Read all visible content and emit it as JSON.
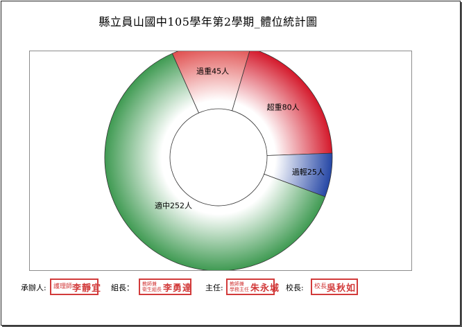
{
  "title": "縣立員山國中105學年第2學期_體位統計圖",
  "chart_data": {
    "type": "pie",
    "variant": "donut",
    "title": "縣立員山國中105學年第2學期_體位統計圖",
    "slices": [
      {
        "name": "過重",
        "value": 45,
        "label": "過重45人",
        "color": "#e04f4f"
      },
      {
        "name": "超重",
        "value": 80,
        "label": "超重80人",
        "color": "#d4192b"
      },
      {
        "name": "過輕",
        "value": 25,
        "label": "過輕25人",
        "color": "#2546a5"
      },
      {
        "name": "適中",
        "value": 252,
        "label": "適中252人",
        "color": "#3f9a52"
      }
    ]
  },
  "signatures": [
    {
      "role": "承辦人:",
      "seal_title": "護理師",
      "seal_name": "李靜宜"
    },
    {
      "role": "組長：",
      "seal_title_lines": [
        "教師兼",
        "衛生組長"
      ],
      "seal_name": "李勇達"
    },
    {
      "role": "主任:",
      "seal_title_lines": [
        "教師兼",
        "學務主任"
      ],
      "seal_name": "朱永城"
    },
    {
      "role": "校長:",
      "seal_title": "校長",
      "seal_name": "吳秋如"
    }
  ]
}
